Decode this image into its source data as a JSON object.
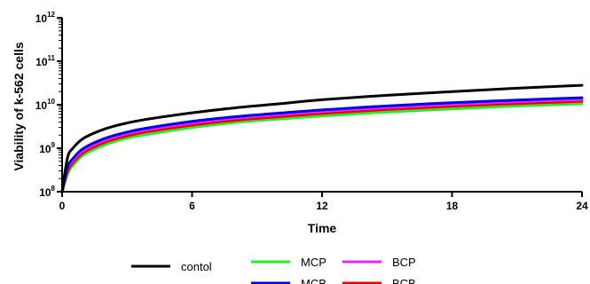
{
  "chart_data": {
    "type": "line",
    "xlabel": "Time",
    "ylabel": "Viability of k-562 cells",
    "x_scale": "linear",
    "y_scale": "log",
    "xlim": [
      0,
      24
    ],
    "ylim": [
      100000000,
      1000000000000
    ],
    "x_ticks": [
      0,
      6,
      12,
      18,
      24
    ],
    "y_ticks": [
      {
        "value": 100000000,
        "base": "10",
        "exp": "8"
      },
      {
        "value": 1000000000,
        "base": "10",
        "exp": "9"
      },
      {
        "value": 10000000000,
        "base": "10",
        "exp": "10"
      },
      {
        "value": 100000000000,
        "base": "10",
        "exp": "11"
      },
      {
        "value": 1000000000000,
        "base": "10",
        "exp": "12"
      }
    ],
    "grid": false,
    "legend_position": "bottom",
    "series": [
      {
        "name": "contol",
        "color": "#000000",
        "x": [
          0,
          0.25,
          0.5,
          1,
          2,
          3,
          4,
          6,
          8,
          10,
          12,
          15,
          18,
          21,
          24
        ],
        "y": [
          100000000,
          600000000,
          1000000000,
          1700000000,
          2800000000,
          3800000000,
          4700000000,
          6500000000,
          8500000000,
          10500000000,
          13000000000,
          16500000000,
          20000000000,
          24000000000,
          28000000000
        ]
      },
      {
        "name": "MCP",
        "color": "#22ee22",
        "x": [
          0,
          0.25,
          0.5,
          1,
          2,
          3,
          4,
          6,
          8,
          10,
          12,
          15,
          18,
          21,
          24
        ],
        "y": [
          100000000,
          250000000,
          400000000,
          700000000,
          1200000000,
          1700000000,
          2100000000,
          3000000000,
          3900000000,
          4700000000,
          5500000000,
          6800000000,
          8000000000,
          9300000000,
          10500000000
        ]
      },
      {
        "name": "BCP",
        "color": "#ee22ee",
        "x": [
          0,
          0.25,
          0.5,
          1,
          2,
          3,
          4,
          6,
          8,
          10,
          12,
          15,
          18,
          21,
          24
        ],
        "y": [
          100000000,
          330000000,
          520000000,
          900000000,
          1550000000,
          2150000000,
          2700000000,
          3800000000,
          4900000000,
          5900000000,
          7000000000,
          8600000000,
          10200000000,
          11700000000,
          13200000000
        ]
      },
      {
        "name": "MCB",
        "color": "#0000ee",
        "x": [
          0,
          0.25,
          0.5,
          1,
          2,
          3,
          4,
          6,
          8,
          10,
          12,
          15,
          18,
          21,
          24
        ],
        "y": [
          100000000,
          360000000,
          580000000,
          1000000000,
          1700000000,
          2350000000,
          2950000000,
          4150000000,
          5300000000,
          6400000000,
          7600000000,
          9400000000,
          11100000000,
          12800000000,
          14500000000
        ]
      },
      {
        "name": "BCB",
        "color": "#ee0000",
        "x": [
          0,
          0.25,
          0.5,
          1,
          2,
          3,
          4,
          6,
          8,
          10,
          12,
          15,
          18,
          21,
          24
        ],
        "y": [
          100000000,
          290000000,
          460000000,
          800000000,
          1380000000,
          1930000000,
          2430000000,
          3400000000,
          4400000000,
          5300000000,
          6300000000,
          7750000000,
          9200000000,
          10600000000,
          12000000000
        ]
      }
    ]
  }
}
